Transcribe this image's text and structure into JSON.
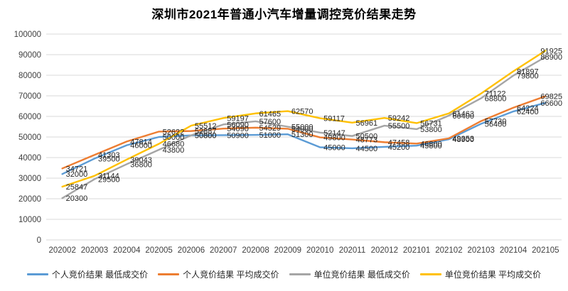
{
  "chart_data": {
    "type": "line",
    "title": "深圳市2021年普通小汽车增量调控竞价结果走势",
    "categories": [
      "202002",
      "202003",
      "202004",
      "202005",
      "202006",
      "202007",
      "202008",
      "202009",
      "202010",
      "202011",
      "202012",
      "202101",
      "202102",
      "202103",
      "202104",
      "202105"
    ],
    "series": [
      {
        "name": "个人竞价结果 最低成交价",
        "color": "#5B9BD5",
        "values": [
          32000,
          39500,
          46000,
          50000,
          50800,
          50900,
          51000,
          51300,
          45000,
          44500,
          45200,
          45800,
          48900,
          56400,
          62400,
          66600
        ]
      },
      {
        "name": "个人竞价结果 平均成交价",
        "color": "#ED7D31",
        "values": [
          34721,
          41303,
          47814,
          52622,
          52887,
          54090,
          54529,
          54000,
          49800,
          48773,
          47458,
          46800,
          49353,
          57730,
          64224,
          69825
        ]
      },
      {
        "name": "单位竞价结果 最低成交价",
        "color": "#A5A5A5",
        "values": [
          20300,
          29500,
          36800,
          43800,
          50800,
          56090,
          57600,
          55000,
          52147,
          50500,
          55500,
          53800,
          60400,
          68800,
          79800,
          88900
        ]
      },
      {
        "name": "单位竞价结果 平均成交价",
        "color": "#FFC000",
        "values": [
          25847,
          31144,
          39043,
          46680,
          55512,
          59197,
          61465,
          62570,
          59117,
          56961,
          59242,
          56731,
          61463,
          71122,
          81897,
          91925
        ]
      }
    ],
    "ylim": [
      0,
      100000
    ],
    "ytick_step": 10000,
    "yticks": [
      "0",
      "10000",
      "20000",
      "30000",
      "40000",
      "50000",
      "60000",
      "70000",
      "80000",
      "90000",
      "100000"
    ],
    "grid": true,
    "data_labels": true,
    "legend_position": "bottom"
  },
  "colors": {
    "gridline": "#D9D9D9",
    "axis_text": "#404040",
    "data_label": "#262626"
  }
}
